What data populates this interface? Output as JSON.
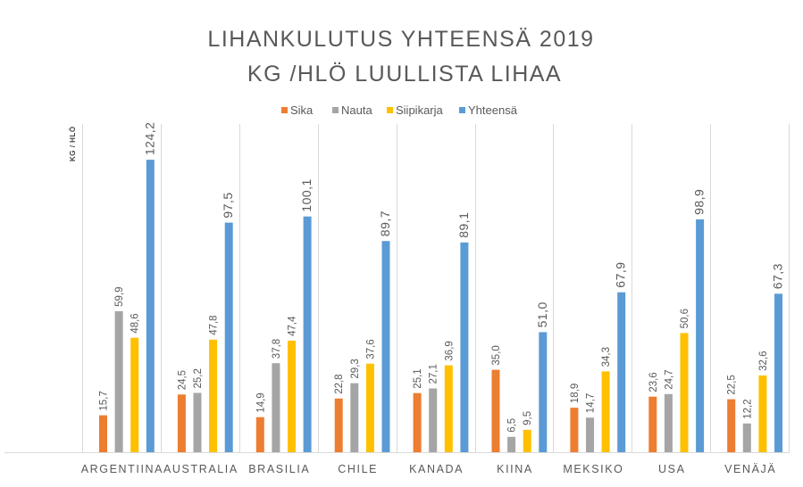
{
  "chart_data": {
    "type": "bar",
    "title_lines": [
      "LIHANKULUTUS YHTEENSÄ 2019",
      "KG /HLÖ LUULLISTA LIHAA"
    ],
    "ylabel": "KG / HLÖ",
    "categories": [
      "ARGENTIINA",
      "AUSTRALIA",
      "BRASILIA",
      "CHILE",
      "KANADA",
      "KIINA",
      "MEKSIKO",
      "USA",
      "VENÄJÄ"
    ],
    "series": [
      {
        "name": "Sika",
        "color": "#ED7D31",
        "values": [
          15.7,
          24.5,
          14.9,
          22.8,
          25.1,
          35.0,
          18.9,
          23.6,
          22.5
        ],
        "labels": [
          "15,7",
          "24,5",
          "14,9",
          "22,8",
          "25,1",
          "35,0",
          "18,9",
          "23,6",
          "22,5"
        ]
      },
      {
        "name": "Nauta",
        "color": "#A5A5A5",
        "values": [
          59.9,
          25.2,
          37.8,
          29.3,
          27.1,
          6.5,
          14.7,
          24.7,
          12.2
        ],
        "labels": [
          "59,9",
          "25,2",
          "37,8",
          "29,3",
          "27,1",
          "6,5",
          "14,7",
          "24,7",
          "12,2"
        ]
      },
      {
        "name": "Siipikarja",
        "color": "#FFC000",
        "values": [
          48.6,
          47.8,
          47.4,
          37.6,
          36.9,
          9.5,
          34.3,
          50.6,
          32.6
        ],
        "labels": [
          "48,6",
          "47,8",
          "47,4",
          "37,6",
          "36,9",
          "9,5",
          "34,3",
          "50,6",
          "32,6"
        ]
      },
      {
        "name": "Yhteensä",
        "color": "#5B9BD5",
        "values": [
          124.2,
          97.5,
          100.1,
          89.7,
          89.1,
          51.0,
          67.9,
          98.9,
          67.3
        ],
        "labels": [
          "124,2",
          "97,5",
          "100,1",
          "89,7",
          "89,1",
          "51,0",
          "67,9",
          "98,9",
          "67,3"
        ]
      }
    ],
    "ylim": [
      0,
      145
    ],
    "grid": "vertical category separators",
    "legend": "top-center"
  }
}
